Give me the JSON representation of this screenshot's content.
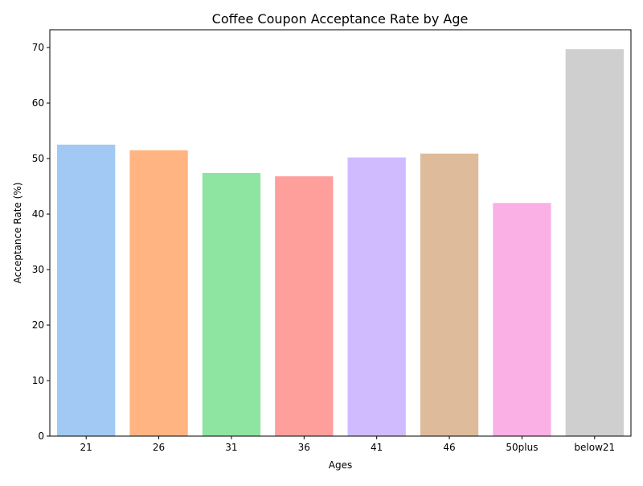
{
  "chart_data": {
    "type": "bar",
    "title": "Coffee Coupon Acceptance Rate by Age",
    "xlabel": "Ages",
    "ylabel": "Acceptance Rate (%)",
    "categories": [
      "21",
      "26",
      "31",
      "36",
      "41",
      "46",
      "50plus",
      "below21"
    ],
    "values": [
      52.5,
      51.5,
      47.4,
      46.8,
      50.2,
      50.9,
      42.0,
      69.7
    ],
    "colors": [
      "#a1c9f4",
      "#ffb482",
      "#8de5a1",
      "#ff9f9b",
      "#d0bbff",
      "#debb9b",
      "#fab0e4",
      "#cfcfcf"
    ],
    "ylim": [
      0,
      73.2
    ],
    "yticks": [
      0,
      10,
      20,
      30,
      40,
      50,
      60,
      70
    ],
    "grid": false,
    "legend": "none"
  }
}
